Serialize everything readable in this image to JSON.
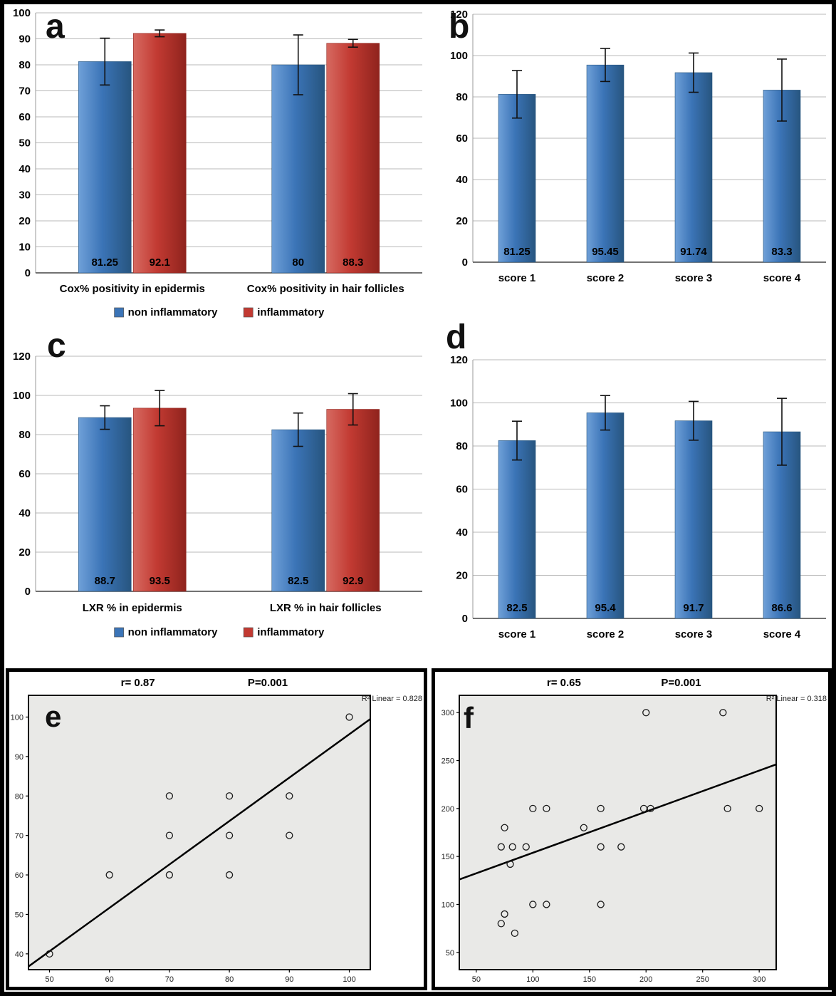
{
  "panels": [
    {
      "letter": "a"
    },
    {
      "letter": "b"
    },
    {
      "letter": "c"
    },
    {
      "letter": "d"
    },
    {
      "letter": "e"
    },
    {
      "letter": "f"
    }
  ],
  "colors": {
    "blue": "#3b74b7",
    "blue_light": "#6fa0d8",
    "blue_dark": "#27557f",
    "red": "#c23a32",
    "red_light": "#d66a61",
    "red_dark": "#8f231d",
    "grid": "#b8b8b8",
    "axis": "#444444",
    "scatter_bg": "#e9e9e7",
    "point_stroke": "#1a1a1a",
    "fit_line": "#000000"
  },
  "chart_data": [
    {
      "id": "a",
      "type": "bar",
      "title": "",
      "categories": [
        "Cox% positivity in epidermis",
        "Cox% positivity in hair follicles"
      ],
      "series": [
        {
          "name": "non inflammatory",
          "color": "blue",
          "values": [
            81.25,
            80
          ],
          "errors": [
            9,
            11.5
          ],
          "labels": [
            "81.25",
            "80"
          ]
        },
        {
          "name": "inflammatory",
          "color": "red",
          "values": [
            92.1,
            88.3
          ],
          "errors": [
            1.3,
            1.5
          ],
          "labels": [
            "92.1",
            "88.3"
          ]
        }
      ],
      "ylim": [
        0,
        100
      ],
      "ystep": 20,
      "yticks": [
        0,
        10,
        20,
        30,
        40,
        50,
        60,
        70,
        80,
        90,
        100
      ],
      "legend": true
    },
    {
      "id": "b",
      "type": "bar",
      "title": "",
      "categories": [
        "score 1",
        "score 2",
        "score 3",
        "score 4"
      ],
      "series": [
        {
          "name": "",
          "color": "blue",
          "values": [
            81.25,
            95.45,
            91.74,
            83.3
          ],
          "errors": [
            11.5,
            8,
            9.5,
            15
          ],
          "labels": [
            "81.25",
            "95.45",
            "91.74",
            "83.3"
          ]
        }
      ],
      "ylim": [
        0,
        120
      ],
      "ystep": 20,
      "yticks": [
        0,
        20,
        40,
        60,
        80,
        100,
        120
      ],
      "legend": false
    },
    {
      "id": "c",
      "type": "bar",
      "title": "",
      "categories": [
        "LXR % in epidermis",
        "LXR % in hair follicles"
      ],
      "series": [
        {
          "name": "non inflammatory",
          "color": "blue",
          "values": [
            88.7,
            82.5
          ],
          "errors": [
            6,
            8.5
          ],
          "labels": [
            "88.7",
            "82.5"
          ]
        },
        {
          "name": "inflammatory",
          "color": "red",
          "values": [
            93.5,
            92.9
          ],
          "errors": [
            9,
            8
          ],
          "labels": [
            "93.5",
            "92.9"
          ]
        }
      ],
      "ylim": [
        0,
        120
      ],
      "ystep": 20,
      "yticks": [
        0,
        20,
        40,
        60,
        80,
        100,
        120
      ],
      "legend": true
    },
    {
      "id": "d",
      "type": "bar",
      "title": "",
      "categories": [
        "score 1",
        "score 2",
        "score 3",
        "score 4"
      ],
      "series": [
        {
          "name": "",
          "color": "blue",
          "values": [
            82.5,
            95.4,
            91.7,
            86.6
          ],
          "errors": [
            9,
            8,
            9,
            15.5
          ],
          "labels": [
            "82.5",
            "95.4",
            "91.7",
            "86.6"
          ]
        }
      ],
      "ylim": [
        0,
        120
      ],
      "ystep": 20,
      "yticks": [
        0,
        20,
        40,
        60,
        80,
        100,
        120
      ],
      "legend": false
    },
    {
      "id": "e",
      "type": "scatter",
      "r_label": "r= 0.87",
      "p_label": "P=0.001",
      "r2_label": "R² Linear = 0.828",
      "xlim": [
        46.5,
        103.5
      ],
      "ylim": [
        36,
        105.5
      ],
      "xticks": [
        50,
        60,
        70,
        80,
        90,
        100
      ],
      "yticks": [
        40,
        50,
        60,
        70,
        80,
        90,
        100
      ],
      "points": [
        [
          50,
          40
        ],
        [
          60,
          60
        ],
        [
          70,
          60
        ],
        [
          70,
          70
        ],
        [
          70,
          80
        ],
        [
          80,
          60
        ],
        [
          80,
          70
        ],
        [
          80,
          80
        ],
        [
          90,
          70
        ],
        [
          90,
          80
        ],
        [
          100,
          100
        ]
      ],
      "line": [
        [
          46.5,
          36.8
        ],
        [
          103.5,
          99.5
        ]
      ]
    },
    {
      "id": "f",
      "type": "scatter",
      "r_label": "r= 0.65",
      "p_label": "P=0.001",
      "r2_label": "R² Linear = 0.318",
      "xlim": [
        35,
        315
      ],
      "ylim": [
        32,
        318
      ],
      "xticks": [
        50,
        100,
        150,
        200,
        250,
        300
      ],
      "yticks": [
        50,
        100,
        150,
        200,
        250,
        300
      ],
      "points": [
        [
          200,
          300
        ],
        [
          268,
          300
        ],
        [
          100,
          200
        ],
        [
          112,
          200
        ],
        [
          160,
          200
        ],
        [
          198,
          200
        ],
        [
          204,
          200
        ],
        [
          272,
          200
        ],
        [
          300,
          200
        ],
        [
          75,
          180
        ],
        [
          145,
          180
        ],
        [
          72,
          160
        ],
        [
          82,
          160
        ],
        [
          94,
          160
        ],
        [
          160,
          160
        ],
        [
          178,
          160
        ],
        [
          80,
          142
        ],
        [
          100,
          100
        ],
        [
          112,
          100
        ],
        [
          160,
          100
        ],
        [
          75,
          90
        ],
        [
          72,
          80
        ],
        [
          84,
          70
        ]
      ],
      "line": [
        [
          35,
          126
        ],
        [
          315,
          246
        ]
      ]
    }
  ]
}
